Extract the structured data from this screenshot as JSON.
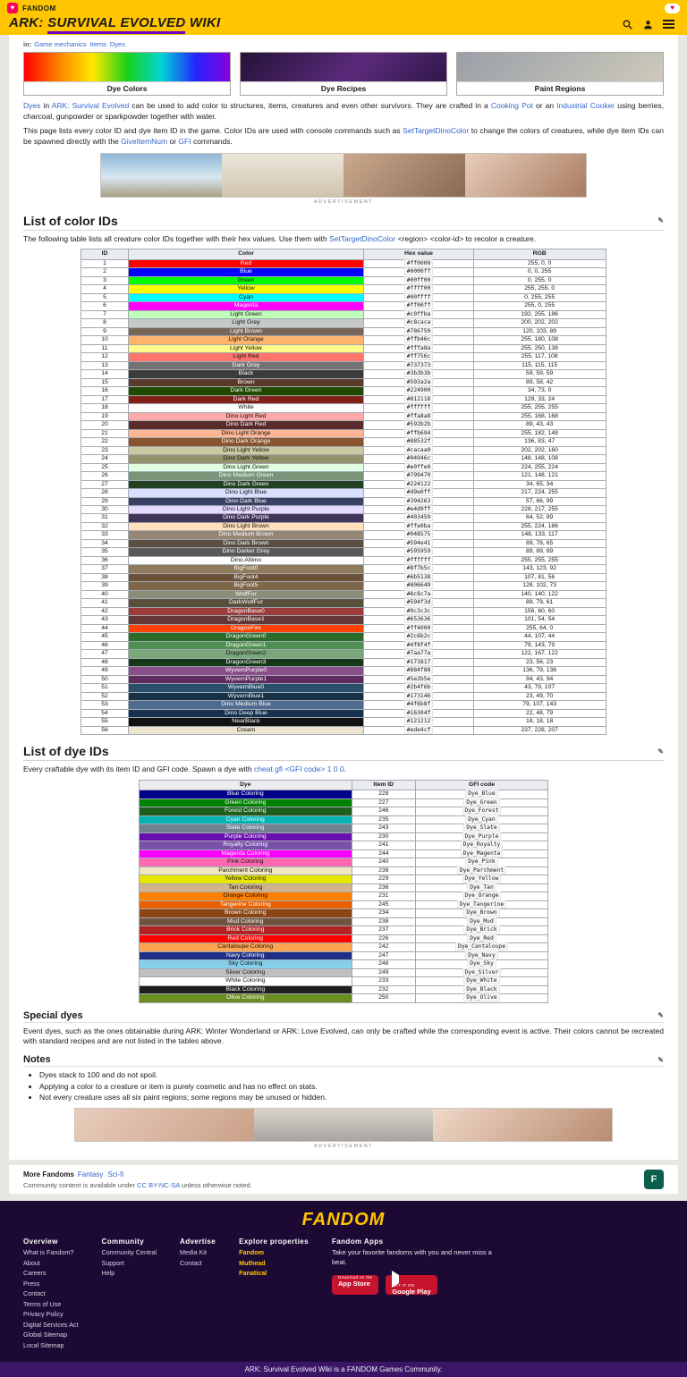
{
  "topbar": {
    "site_label": "FANDOM",
    "wordmark_a": "ARK:",
    "wordmark_b": "SURVIVAL EVOLVED",
    "wordmark_c": "WIKI",
    "category_prefix": "in:",
    "categories": [
      "Game mechanics",
      "Items",
      "Dyes"
    ]
  },
  "cards": [
    {
      "label": "Dye Colors"
    },
    {
      "label": "Dye Recipes"
    },
    {
      "label": "Paint Regions"
    }
  ],
  "intro": {
    "p1": [
      {
        "text": "Dyes",
        "link": true
      },
      {
        "text": " in "
      },
      {
        "text": "ARK: Survival Evolved",
        "link": true
      },
      {
        "text": " can be used to add color to structures, items, creatures and even other survivors. They are crafted in a "
      },
      {
        "text": "Cooking Pot",
        "link": true
      },
      {
        "text": " or an "
      },
      {
        "text": "Industrial Cooker",
        "link": true
      },
      {
        "text": " using berries, charcoal, gunpowder or sparkpowder together with water."
      }
    ],
    "p2": [
      {
        "text": "This page lists every color ID and dye item ID in the game. Color IDs are used with console commands such as "
      },
      {
        "text": "SetTargetDinoColor",
        "link": true
      },
      {
        "text": " to change the colors of creatures, while dye item IDs can be spawned directly with the "
      },
      {
        "text": "GiveItemNum",
        "link": true
      },
      {
        "text": " or "
      },
      {
        "text": "GFI",
        "link": true
      },
      {
        "text": " commands."
      }
    ]
  },
  "ad": {
    "label": "ADVERTISEMENT"
  },
  "color_section": {
    "heading": "List of color IDs",
    "intro": [
      {
        "text": "The following table lists all creature color IDs together with their hex values. Use them with "
      },
      {
        "text": "SetTargetDinoColor",
        "link": true
      },
      {
        "text": " <region> <color-id> to recolor a creature."
      }
    ],
    "table": {
      "columns": [
        "ID",
        "Color",
        "Hex value",
        "RGB"
      ],
      "rows": [
        [
          "Red",
          "#ff0000"
        ],
        [
          "Blue",
          "#0000ff"
        ],
        [
          "Green",
          "#00ff00"
        ],
        [
          "Yellow",
          "#ffff00"
        ],
        [
          "Cyan",
          "#00ffff"
        ],
        [
          "Magenta",
          "#ff00ff"
        ],
        [
          "Light Green",
          "#c0ffba"
        ],
        [
          "Light Grey",
          "#c8caca"
        ],
        [
          "Light Brown",
          "#786759"
        ],
        [
          "Light Orange",
          "#ffb46c"
        ],
        [
          "Light Yellow",
          "#fffa8a"
        ],
        [
          "Light Red",
          "#ff756c"
        ],
        [
          "Dark Grey",
          "#737373"
        ],
        [
          "Black",
          "#3b3b3b"
        ],
        [
          "Brown",
          "#593a2a"
        ],
        [
          "Dark Green",
          "#224900"
        ],
        [
          "Dark Red",
          "#812118"
        ],
        [
          "White",
          "#ffffff"
        ],
        [
          "Dino Light Red",
          "#ffa8a8"
        ],
        [
          "Dino Dark Red",
          "#592b2b"
        ],
        [
          "Dino Light Orange",
          "#ffb694"
        ],
        [
          "Dino Dark Orange",
          "#88532f"
        ],
        [
          "Dino Light Yellow",
          "#cacaa0"
        ],
        [
          "Dino Dark Yellow",
          "#94946c"
        ],
        [
          "Dino Light Green",
          "#e0ffe0"
        ],
        [
          "Dino Medium Green",
          "#799479"
        ],
        [
          "Dino Dark Green",
          "#224122"
        ],
        [
          "Dino Light Blue",
          "#d9e0ff"
        ],
        [
          "Dino Dark Blue",
          "#394263"
        ],
        [
          "Dino Light Purple",
          "#e4d9ff"
        ],
        [
          "Dino Dark Purple",
          "#403459"
        ],
        [
          "Dino Light Brown",
          "#ffe0ba"
        ],
        [
          "Dino Medium Brown",
          "#948575"
        ],
        [
          "Dino Dark Brown",
          "#594e41"
        ],
        [
          "Dino Darker Grey",
          "#595959"
        ],
        [
          "Dino Albino",
          "#ffffff"
        ],
        [
          "BigFoot0",
          "#8f7b5c"
        ],
        [
          "BigFoot4",
          "#6b5138"
        ],
        [
          "BigFoot5",
          "#806649"
        ],
        [
          "WolfFur",
          "#8c8c7a"
        ],
        [
          "DarkWolfFur",
          "#594f3d"
        ],
        [
          "DragonBase0",
          "#9c3c3c"
        ],
        [
          "DragonBase1",
          "#653636"
        ],
        [
          "DragonFire",
          "#ff4000"
        ],
        [
          "DragonGreen0",
          "#2c6b2c"
        ],
        [
          "DragonGreen1",
          "#4f8f4f"
        ],
        [
          "DragonGreen2",
          "#7aa77a"
        ],
        [
          "DragonGreen3",
          "#173817"
        ],
        [
          "WyvernPurple0",
          "#884f88"
        ],
        [
          "WyvernPurple1",
          "#5e2b5e"
        ],
        [
          "WyvernBlue0",
          "#2b4f6b"
        ],
        [
          "WyvernBlue1",
          "#173146"
        ],
        [
          "Dino Medium Blue",
          "#4f6b8f"
        ],
        [
          "Dino Deep Blue",
          "#16304f"
        ],
        [
          "NearBlack",
          "#121212"
        ],
        [
          "Cream",
          "#ede4cf"
        ]
      ]
    }
  },
  "dye_section": {
    "heading": "List of dye IDs",
    "intro": [
      {
        "text": "Every craftable dye with its item ID and GFI code. Spawn a dye with "
      },
      {
        "text": "cheat gfi <GFI code> 1 0 0",
        "link": true
      },
      {
        "text": "."
      }
    ],
    "table": {
      "columns": [
        "Dye",
        "Item ID",
        "GFI code"
      ],
      "rows": [
        [
          "Blue Coloring",
          "#00008b",
          "228",
          "Dye_Blue"
        ],
        [
          "Green Coloring",
          "#008000",
          "227",
          "Dye_Green"
        ],
        [
          "Forest Coloring",
          "#1e5e1e",
          "246",
          "Dye_Forest"
        ],
        [
          "Cyan Coloring",
          "#00b3b3",
          "235",
          "Dye_Cyan"
        ],
        [
          "Slate Coloring",
          "#708090",
          "243",
          "Dye_Slate"
        ],
        [
          "Purple Coloring",
          "#690fad",
          "230",
          "Dye_Purple"
        ],
        [
          "Royalty Coloring",
          "#7851a9",
          "241",
          "Dye_Royalty"
        ],
        [
          "Magenta Coloring",
          "#ff00ff",
          "244",
          "Dye_Magenta"
        ],
        [
          "Pink Coloring",
          "#ff69b4",
          "240",
          "Dye_Pink"
        ],
        [
          "Parchment Coloring",
          "#f0e6c2",
          "239",
          "Dye_Parchment"
        ],
        [
          "Yellow Coloring",
          "#e6e600",
          "229",
          "Dye_Yellow"
        ],
        [
          "Tan Coloring",
          "#d2b48c",
          "236",
          "Dye_Tan"
        ],
        [
          "Orange Coloring",
          "#ff7f00",
          "231",
          "Dye_Orange"
        ],
        [
          "Tangerine Coloring",
          "#e86100",
          "245",
          "Dye_Tangerine"
        ],
        [
          "Brown Coloring",
          "#8b4513",
          "234",
          "Dye_Brown"
        ],
        [
          "Mud Coloring",
          "#70543e",
          "238",
          "Dye_Mud"
        ],
        [
          "Brick Coloring",
          "#b22222",
          "237",
          "Dye_Brick"
        ],
        [
          "Red Coloring",
          "#ff0000",
          "226",
          "Dye_Red"
        ],
        [
          "Cantaloupe Coloring",
          "#ffa550",
          "242",
          "Dye_Cantaloupe"
        ],
        [
          "Navy Coloring",
          "#1f2f86",
          "247",
          "Dye_Navy"
        ],
        [
          "Sky Coloring",
          "#87ceeb",
          "248",
          "Dye_Sky"
        ],
        [
          "Silver Coloring",
          "#c0c0c0",
          "249",
          "Dye_Silver"
        ],
        [
          "White Coloring",
          "#ffffff",
          "233",
          "Dye_White"
        ],
        [
          "Black Coloring",
          "#1f1f1f",
          "232",
          "Dye_Black"
        ],
        [
          "Olive Coloring",
          "#6b8e23",
          "250",
          "Dye_Olive"
        ]
      ]
    }
  },
  "special": {
    "heading": "Special dyes",
    "body": "Event dyes, such as the ones obtainable during ARK: Winter Wonderland or ARK: Love Evolved, can only be crafted while the corresponding event is active. Their colors cannot be recreated with standard recipes and are not listed in the tables above."
  },
  "notes": {
    "heading": "Notes",
    "items": [
      "Dyes stack to 100 and do not spoil.",
      "Applying a color to a creature or item is purely cosmetic and has no effect on stats.",
      "Not every creature uses all six paint regions; some regions may be unused or hidden."
    ]
  },
  "prefooter": {
    "more_label": "More Fandoms",
    "more_links": [
      "Fantasy",
      "Sci-fi"
    ],
    "license_prefix": "Community content is available under ",
    "license_link": "CC BY-NC-SA",
    "license_suffix": " unless otherwise noted."
  },
  "footer": {
    "logo": "FANDOM",
    "columns": [
      {
        "heading": "Overview",
        "links": [
          "What is Fandom?",
          "About",
          "Careers",
          "Press",
          "Contact",
          "Terms of Use",
          "Privacy Policy",
          "Digital Services Act",
          "Global Sitemap",
          "Local Sitemap"
        ]
      },
      {
        "heading": "Community",
        "links": [
          "Community Central",
          "Support",
          "Help"
        ]
      },
      {
        "heading": "Advertise",
        "links": [
          "Media Kit",
          "Contact"
        ]
      },
      {
        "heading": "Explore properties",
        "links": [
          "Fandom",
          "Muthead",
          "Fanatical"
        ]
      }
    ],
    "apps": {
      "heading": "Fandom Apps",
      "tagline": "Take your favorite fandoms with you and never miss a beat.",
      "badges": [
        {
          "small": "Download on the",
          "store": "App Store"
        },
        {
          "small": "GET IT ON",
          "store": "Google Play"
        }
      ]
    },
    "bottom": "ARK: Survival Evolved Wiki is a FANDOM Games Community."
  }
}
